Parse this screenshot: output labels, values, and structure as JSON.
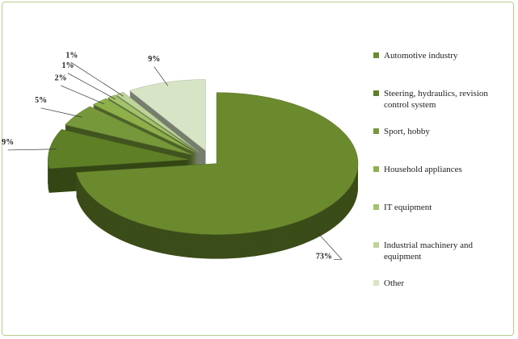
{
  "chart_data": {
    "type": "pie3d",
    "categories": [
      "Automotive industry",
      "Steering, hydraulics, revision control system",
      "Sport, hobby",
      "Household appliances",
      "IT equipment",
      "Industrial machinery and equipment",
      "Other"
    ],
    "values": [
      73,
      9,
      5,
      2,
      1,
      1,
      9
    ],
    "value_labels": [
      "73%",
      "9%",
      "5%",
      "2%",
      "1%",
      "1%",
      "9%"
    ],
    "colors": [
      "#6b8a2e",
      "#5f7f27",
      "#76983a",
      "#8db04a",
      "#a3c26a",
      "#bdd49a",
      "#d8e4c6"
    ],
    "legend": "right"
  }
}
